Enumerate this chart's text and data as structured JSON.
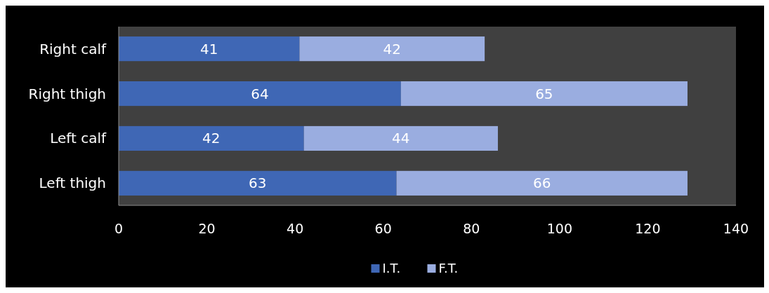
{
  "chart_data": {
    "type": "bar",
    "orientation": "horizontal",
    "stacked": true,
    "categories": [
      "Right calf",
      "Right thigh",
      "Left calf",
      "Left thigh"
    ],
    "series": [
      {
        "name": "I.T.",
        "color": "#3f67b5",
        "values": [
          41,
          64,
          42,
          63
        ]
      },
      {
        "name": "F.T.",
        "color": "#9aade0",
        "values": [
          42,
          65,
          44,
          66
        ]
      }
    ],
    "xlim": [
      0,
      140
    ],
    "xticks": [
      0,
      20,
      40,
      60,
      80,
      100,
      120,
      140
    ],
    "data_labels": true,
    "legend": "bottom",
    "grid": false
  }
}
